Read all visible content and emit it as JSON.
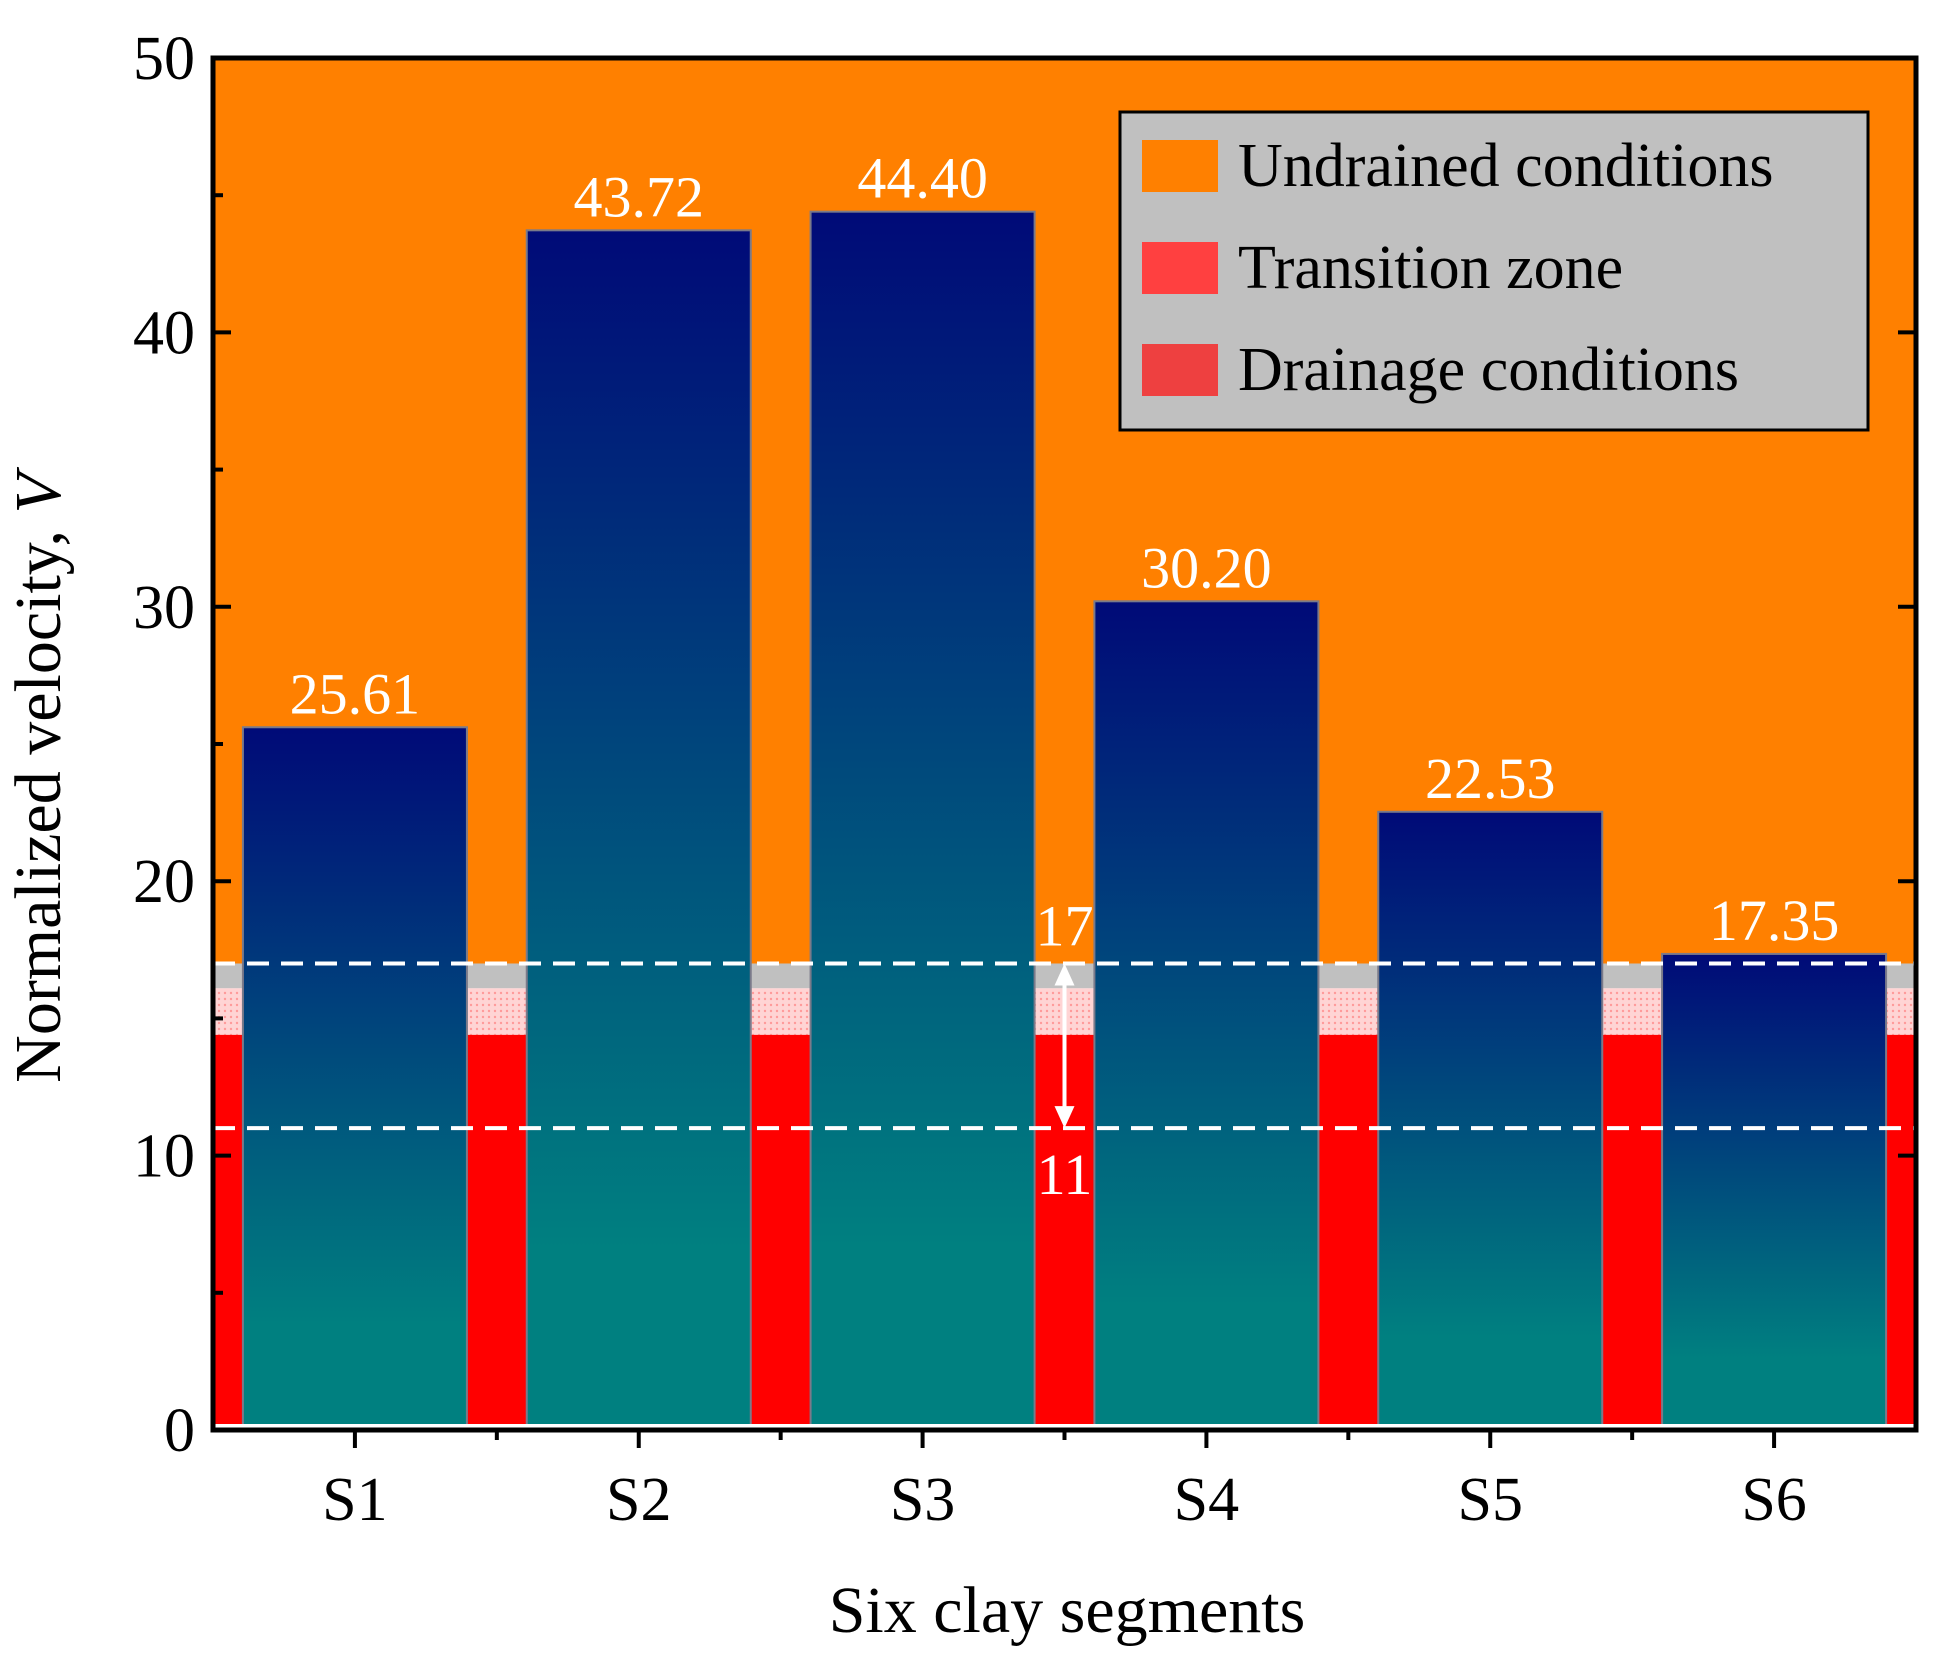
{
  "chart_data": {
    "type": "bar",
    "title": "",
    "xlabel": "Six clay segments",
    "ylabel_main": "Normalized velocity, ",
    "ylabel_var": "V",
    "categories": [
      "S1",
      "S2",
      "S3",
      "S4",
      "S5",
      "S6"
    ],
    "values": [
      25.61,
      43.72,
      44.4,
      30.2,
      22.53,
      17.35
    ],
    "value_labels": [
      "25.61",
      "43.72",
      "44.40",
      "30.20",
      "22.53",
      "17.35"
    ],
    "ylim": [
      0,
      50
    ],
    "yticks": [
      0,
      10,
      20,
      30,
      40,
      50
    ],
    "ytick_labels": [
      "0",
      "10",
      "20",
      "30",
      "40",
      "50"
    ],
    "grid": false,
    "zones": {
      "undrained_from": 17,
      "transition_from": 14.4,
      "transition_to": 16.1,
      "drainage_to": 14.4
    },
    "reference_lines": [
      {
        "value": 17,
        "label": "17"
      },
      {
        "value": 11,
        "label": "11"
      }
    ],
    "legend": {
      "placement": "top-right",
      "entries": [
        {
          "label": "Undrained conditions",
          "color": "#ff8000"
        },
        {
          "label": "Transition zone",
          "color": "#ff4040"
        },
        {
          "label": "Drainage conditions",
          "color": "#ee4040"
        }
      ]
    },
    "colors": {
      "undrained": "#ff8000",
      "drainage": "#ff0000",
      "transition": "#ffc8c8",
      "band": "#c0c0c0",
      "bar_top": "#000a78",
      "bar_bottom": "#008080",
      "legend_bg": "#c0c0c0"
    }
  }
}
